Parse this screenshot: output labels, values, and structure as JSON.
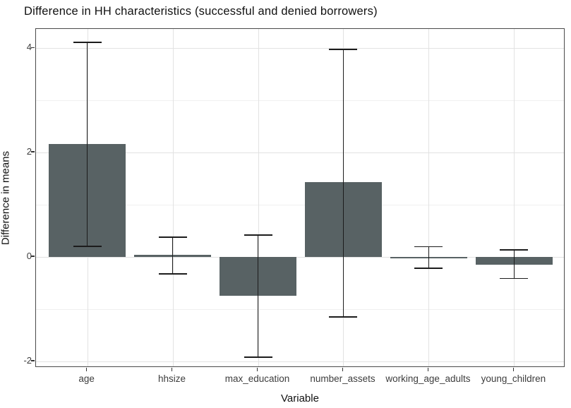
{
  "chart_data": {
    "type": "bar",
    "title": "Difference in HH characteristics (successful and denied borrowers)",
    "xlabel": "Variable",
    "ylabel": "Difference in means",
    "categories": [
      "age",
      "hhsize",
      "max_education",
      "number_assets",
      "working_age_adults",
      "young_children"
    ],
    "values": [
      2.17,
      0.05,
      -0.74,
      1.43,
      -0.02,
      -0.15
    ],
    "error_low": [
      0.21,
      -0.32,
      -1.92,
      -1.15,
      -0.21,
      -0.41
    ],
    "error_high": [
      4.11,
      0.38,
      0.42,
      3.98,
      0.2,
      0.14
    ],
    "yticks": [
      -2,
      0,
      2,
      4
    ],
    "ytick_labels": [
      "-2",
      "0",
      "2",
      "4"
    ],
    "ylim": [
      -2.12,
      4.37
    ],
    "grid": "major-and-minor",
    "legend_position": "none",
    "bar_fill_color": "#586264",
    "error_bar_color": "#1c1c1c",
    "major_grid_color": "#e2e2e2",
    "minor_grid_color": "#f0f0f0",
    "panel_border_color": "#4a4a4a",
    "tick_text_color": "#3d3d3d"
  }
}
